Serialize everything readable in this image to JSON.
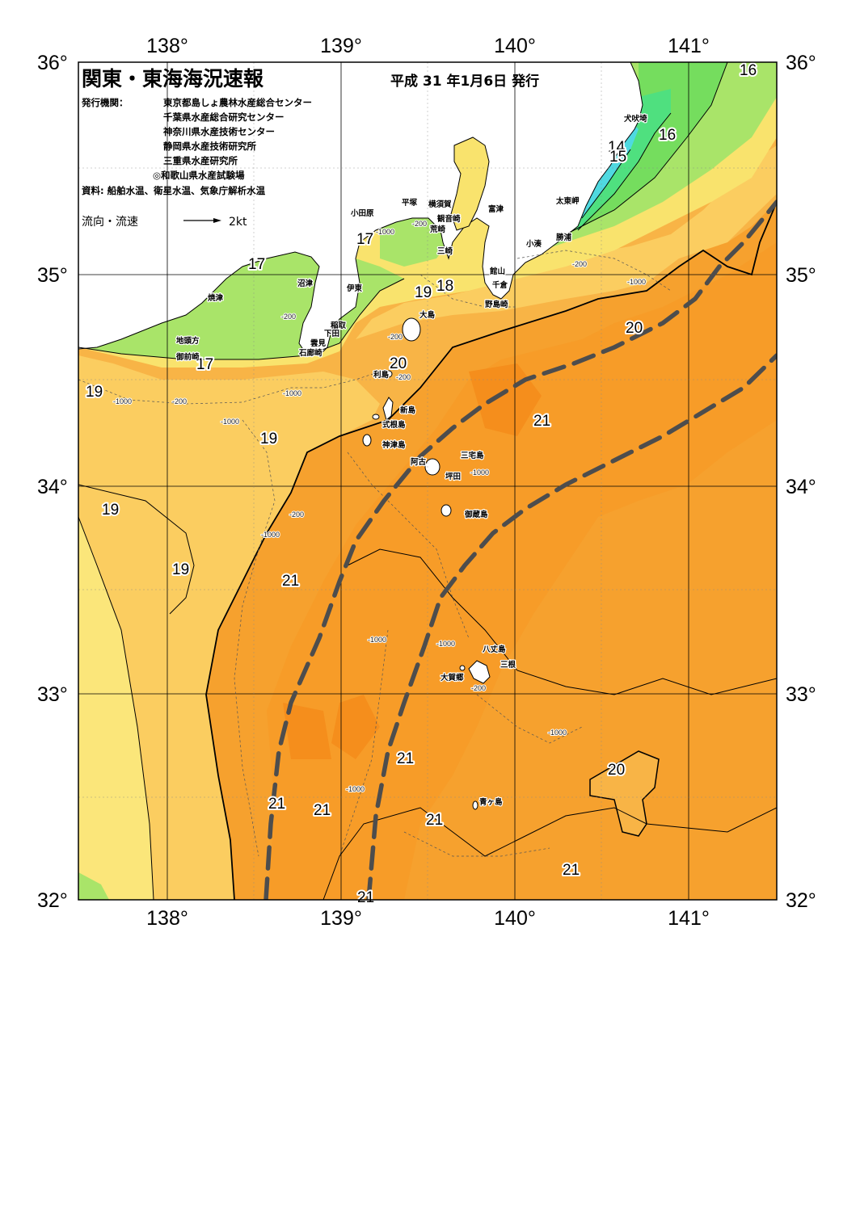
{
  "header": {
    "title": "関東・東海海況速報",
    "date": "平成 31 年1月6日 発行",
    "issuer_label": "発行機関：",
    "issuers": [
      "東京都島しょ農林水産総合センター",
      "千葉県水産総合研究センター",
      "神奈川県水産技術センター",
      "静岡県水産技術研究所",
      "三重県水産研究所",
      "◎和歌山県水産試験場"
    ],
    "sources": "資料: 船舶水温、衛星水温、気象庁解析水温",
    "current_label": "流向・流速",
    "current_scale": "2kt"
  },
  "axes": {
    "lon_top": [
      "138°",
      "139°",
      "140°",
      "141°"
    ],
    "lon_bottom": [
      "138°",
      "139°",
      "140°",
      "141°"
    ],
    "lat_left": [
      "36°",
      "35°",
      "34°",
      "33°",
      "32°"
    ],
    "lat_right": [
      "36°",
      "35°",
      "34°",
      "33°",
      "32°"
    ]
  },
  "isotherm_labels": [
    "16",
    "16",
    "14",
    "15",
    "17",
    "17",
    "19",
    "18",
    "17",
    "20",
    "20",
    "19",
    "21",
    "19",
    "19",
    "19",
    "21",
    "21",
    "20",
    "21",
    "21",
    "21",
    "21",
    "21"
  ],
  "depth_labels": [
    "-1000",
    "-200",
    "-200",
    "-1000",
    "-200",
    "-200",
    "-1000",
    "-1000",
    "-200",
    "-200",
    "-1000",
    "-200",
    "-1000",
    "-1000",
    "-1000",
    "-200",
    "-1000",
    "-1000",
    "-1000"
  ],
  "places": [
    "犬吠埼",
    "太東岬",
    "勝浦",
    "小湊",
    "富津",
    "館山",
    "千倉",
    "野島崎",
    "横須賀",
    "観音崎",
    "荒崎",
    "三崎",
    "平塚",
    "小田原",
    "大島",
    "沼津",
    "伊東",
    "稲取",
    "下田",
    "雲見",
    "石廊崎",
    "焼津",
    "地頭方",
    "御前崎",
    "利島",
    "新島",
    "式根島",
    "神津島",
    "三宅島",
    "阿古",
    "坪田",
    "御蔵島",
    "八丈島",
    "三根",
    "大賀郷",
    "青ヶ島"
  ],
  "colors": {
    "water_21": "#f6a12e",
    "water_warm": "#f7931e",
    "water_20": "#f8b446",
    "water_19": "#fbcd60",
    "water_18": "#f9e36d",
    "water_17": "#a9e469",
    "water_16": "#75dd5e",
    "water_15": "#4fe07f",
    "water_14": "#4fd9e0",
    "land": "#ffffff",
    "kuroshio": "#4d4d4d"
  }
}
